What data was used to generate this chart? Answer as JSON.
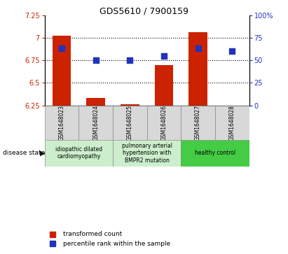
{
  "title": "GDS5610 / 7900159",
  "samples": [
    "GSM1648023",
    "GSM1648024",
    "GSM1648025",
    "GSM1648026",
    "GSM1648027",
    "GSM1648028"
  ],
  "transformed_count": [
    7.02,
    6.33,
    6.265,
    6.7,
    7.06,
    6.25
  ],
  "percentile_rank": [
    63,
    50,
    50,
    55,
    63,
    60
  ],
  "ylim_left": [
    6.25,
    7.25
  ],
  "ylim_right": [
    0,
    100
  ],
  "yticks_left": [
    6.25,
    6.5,
    6.75,
    7.0,
    7.25
  ],
  "yticks_right": [
    0,
    25,
    50,
    75,
    100
  ],
  "ytick_labels_left": [
    "6.25",
    "6.5",
    "6.75",
    "7",
    "7.25"
  ],
  "ytick_labels_right": [
    "0",
    "25",
    "50",
    "75",
    "100%"
  ],
  "bar_base": 6.25,
  "bar_color": "#cc2200",
  "dot_color": "#2233bb",
  "group_labels": [
    "idiopathic dilated\ncardiomyopathy",
    "pulmonary arterial\nhypertension with\nBMPR2 mutation",
    "healthy control"
  ],
  "group_colors": [
    "#cceecc",
    "#cceecc",
    "#44cc44"
  ],
  "group_ranges": [
    [
      0,
      2
    ],
    [
      2,
      4
    ],
    [
      4,
      6
    ]
  ],
  "legend_bar_label": "transformed count",
  "legend_dot_label": "percentile rank within the sample",
  "disease_state_label": "disease state",
  "bar_width": 0.55,
  "dot_size": 30,
  "tick_label_fontsize": 7,
  "title_fontsize": 9,
  "sample_label_fontsize": 5.5,
  "disease_label_fontsize": 5.5,
  "legend_fontsize": 6.5
}
